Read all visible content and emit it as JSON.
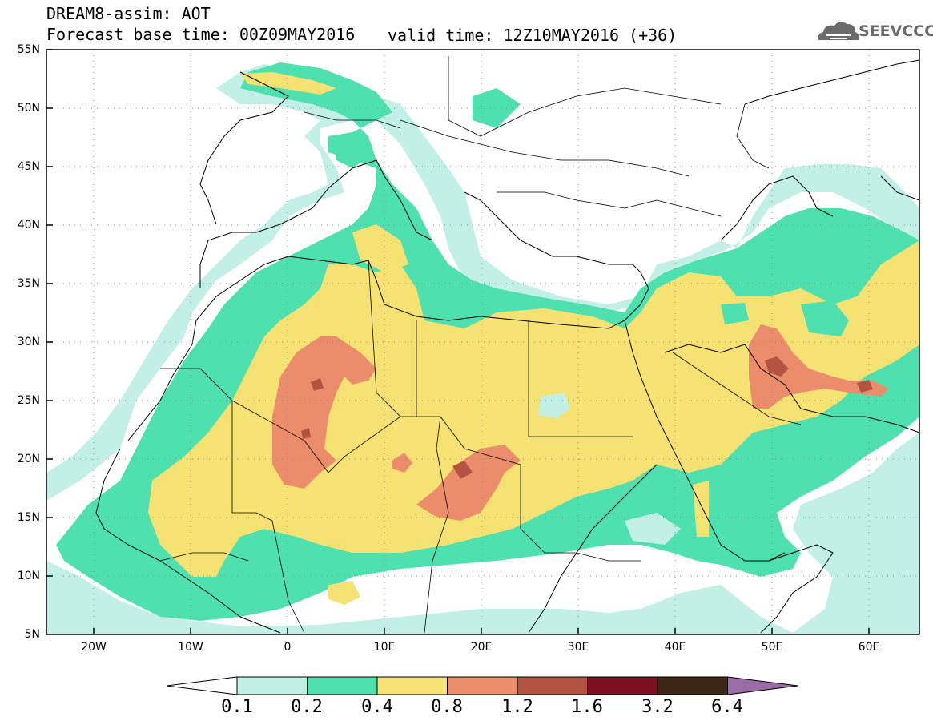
{
  "header": {
    "title": "DREAM8-assim: AOT",
    "base_time": "Forecast base time: 00Z09MAY2016",
    "valid_time": "valid time: 12Z10MAY2016 (+36)"
  },
  "logo": {
    "text": "SEEVCCC",
    "icon": "cloud-icon"
  },
  "axes": {
    "lat_labels": [
      "55N",
      "50N",
      "45N",
      "40N",
      "35N",
      "30N",
      "25N",
      "20N",
      "15N",
      "10N",
      "5N"
    ],
    "lon_labels": [
      "20W",
      "10W",
      "0",
      "10E",
      "20E",
      "30E",
      "40E",
      "50E",
      "60E"
    ]
  },
  "colorbar": {
    "levels": [
      "0.1",
      "0.2",
      "0.4",
      "0.8",
      "1.2",
      "1.6",
      "3.2",
      "6.4"
    ],
    "colors": [
      "#ffffff",
      "#c2f0e6",
      "#4fe0b0",
      "#f5e272",
      "#eb8d6a",
      "#b55343",
      "#7e0f22",
      "#3e2614",
      "#9b6ca8"
    ]
  },
  "palette": {
    "aot_01_02": "#c2f0e6",
    "aot_02_04": "#4fe0b0",
    "aot_04_08": "#f5e272",
    "aot_08_12": "#eb8d6a",
    "aot_12_16": "#b55343",
    "aot_16_32": "#7e0f22"
  }
}
